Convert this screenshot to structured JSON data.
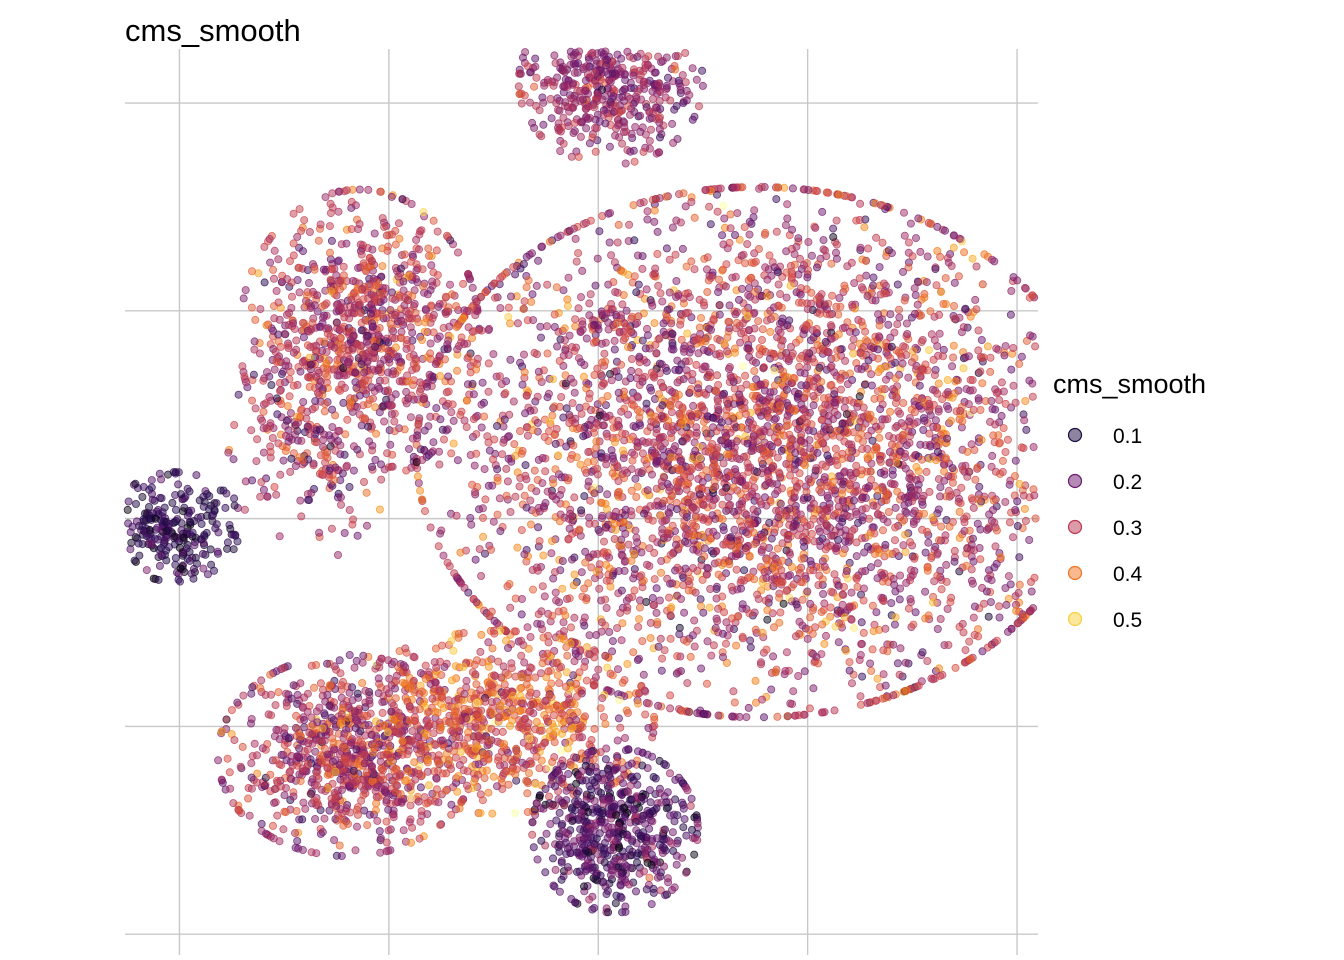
{
  "chart_data": {
    "type": "scatter",
    "title": "cms_smooth",
    "xlabel": "",
    "ylabel": "",
    "axes_visible": false,
    "grid": true,
    "x_gridlines": [
      -10,
      -5,
      0,
      5,
      10
    ],
    "y_gridlines": [
      -10,
      -5,
      0,
      5,
      10
    ],
    "xlim": [
      -11.3,
      10.5
    ],
    "ylim": [
      -10.5,
      11.3
    ],
    "color_scale": "inferno",
    "point_alpha": 0.5,
    "legend": {
      "title": "cms_smooth",
      "placement": "right",
      "entries": [
        {
          "label": "0.1",
          "value": 0.1,
          "color": "#1b0c41"
        },
        {
          "label": "0.2",
          "value": 0.2,
          "color": "#6a176e"
        },
        {
          "label": "0.3",
          "value": 0.3,
          "color": "#bb3754"
        },
        {
          "label": "0.4",
          "value": 0.4,
          "color": "#f1731d"
        },
        {
          "label": "0.5",
          "value": 0.5,
          "color": "#f9d03c"
        }
      ]
    },
    "clusters": [
      {
        "cx": 0.3,
        "cy": 10.5,
        "sx": 1.0,
        "sy": 0.9,
        "n": 520,
        "mean": 0.26,
        "sd": 0.05
      },
      {
        "cx": -5.7,
        "cy": 4.4,
        "sx": 1.3,
        "sy": 1.6,
        "n": 950,
        "mean": 0.3,
        "sd": 0.07
      },
      {
        "cx": -6.9,
        "cy": 1.6,
        "sx": 0.9,
        "sy": 1.2,
        "n": 160,
        "mean": 0.27,
        "sd": 0.07
      },
      {
        "cx": -10.1,
        "cy": -0.2,
        "sx": 0.7,
        "sy": 0.6,
        "n": 260,
        "mean": 0.13,
        "sd": 0.04
      },
      {
        "cx": 3.8,
        "cy": 1.6,
        "sx": 3.7,
        "sy": 2.9,
        "n": 4200,
        "mean": 0.3,
        "sd": 0.08
      },
      {
        "cx": -6.0,
        "cy": -5.7,
        "sx": 1.4,
        "sy": 1.1,
        "n": 850,
        "mean": 0.29,
        "sd": 0.07
      },
      {
        "cx": -2.4,
        "cy": -4.9,
        "sx": 1.7,
        "sy": 1.0,
        "n": 750,
        "mean": 0.36,
        "sd": 0.07
      },
      {
        "cx": 0.4,
        "cy": -7.5,
        "sx": 0.9,
        "sy": 0.9,
        "n": 600,
        "mean": 0.18,
        "sd": 0.06
      },
      {
        "cx": 0.3,
        "cy": 4.6,
        "sx": 0.5,
        "sy": 0.2,
        "n": 30,
        "mean": 0.28,
        "sd": 0.05
      }
    ]
  }
}
